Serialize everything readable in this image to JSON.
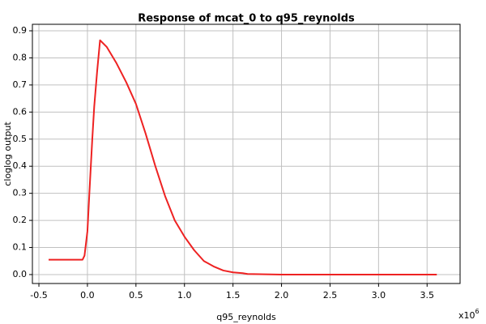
{
  "chart_data": {
    "type": "line",
    "title": "Response of mcat_0 to q95_reynolds",
    "x_label": "q95_reynolds",
    "y_label": "cloglog output",
    "x_scale_base": "x10",
    "x_scale_exponent": "6",
    "xlim": [
      -0.567,
      3.84
    ],
    "ylim": [
      -0.033,
      0.924
    ],
    "xticks": [
      -0.5,
      {
        "value": 0,
        "label": "0.0"
      },
      0.5,
      {
        "value": 1,
        "label": "1.0"
      },
      1.5,
      {
        "value": 2,
        "label": "2.0"
      },
      2.5,
      {
        "value": 3,
        "label": "3.0"
      },
      3.5
    ],
    "yticks": [
      {
        "value": 0,
        "label": "0.0"
      },
      0.1,
      0.2,
      0.3,
      0.4,
      0.5,
      0.6,
      0.7,
      0.8,
      0.9
    ],
    "grid": true,
    "x": [
      -0.4,
      -0.05,
      -0.03,
      0.0,
      0.02,
      0.05,
      0.07,
      0.1,
      0.13,
      0.2,
      0.3,
      0.4,
      0.5,
      0.6,
      0.7,
      0.8,
      0.9,
      1.0,
      1.1,
      1.2,
      1.3,
      1.4,
      1.5,
      1.6,
      1.65,
      2.0,
      3.0,
      3.6
    ],
    "series": [
      {
        "color": "#ee2222",
        "values": [
          0.055,
          0.055,
          0.07,
          0.16,
          0.3,
          0.5,
          0.62,
          0.75,
          0.865,
          0.84,
          0.78,
          0.71,
          0.63,
          0.52,
          0.4,
          0.29,
          0.2,
          0.14,
          0.09,
          0.05,
          0.03,
          0.015,
          0.008,
          0.005,
          0.002,
          0,
          0,
          0
        ]
      }
    ]
  }
}
